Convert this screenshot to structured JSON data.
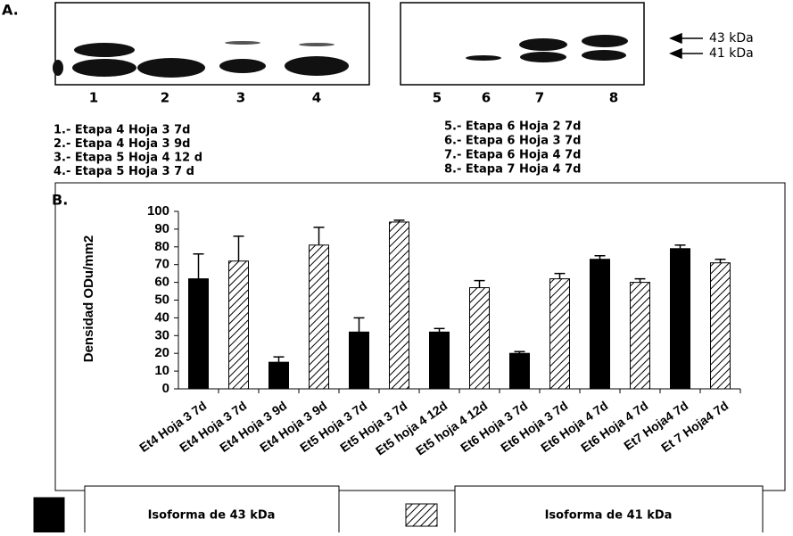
{
  "panel_a": {
    "label": "A.",
    "lanes": [
      "1",
      "2",
      "3",
      "4",
      "5",
      "6",
      "7",
      "8"
    ],
    "markers": [
      "43 kDa",
      "41 kDa"
    ],
    "legend_left": [
      "1.- Etapa 4 Hoja 3 7d",
      "2.- Etapa 4 Hoja 3 9d",
      "3.- Etapa 5 Hoja 4 12 d",
      "4.- Etapa 5 Hoja 3  7  d"
    ],
    "legend_right": [
      "5.- Etapa 6 Hoja 2  7d",
      "6.- Etapa 6 Hoja 3  7d",
      "7.- Etapa 6 Hoja 4  7d",
      "8.- Etapa 7 Hoja 4  7d"
    ]
  },
  "chart_data": {
    "type": "bar",
    "panel_label": "B.",
    "y_label": "Densidad ODu/mm2",
    "categories": [
      "Et4 Hoja 3 7d",
      "Et4 Hoja 3 7d",
      "Et4 Hoja 3 9d",
      "Et4 Hoja 3 9d",
      "Et5 Hoja 3 7d",
      "Et5 Hoja 3 7d",
      "Et5 hoja 4 12d",
      "Et5 hoja 4 12d",
      "Et6 Hoja 3 7d",
      "Et6 Hoja 3 7d",
      "Et6 Hoja 4 7d",
      "Et6 Hoja 4 7d",
      "Et7 Hoja4 7d",
      "Et 7 Hoja4 7d"
    ],
    "series": [
      {
        "name": "Isoforma de 43 kDa",
        "color": "#000000",
        "hatch": false,
        "values": [
          62,
          null,
          15,
          null,
          32,
          null,
          32,
          null,
          20,
          null,
          73,
          null,
          79,
          null
        ],
        "errors": [
          14,
          null,
          3,
          null,
          8,
          null,
          2,
          null,
          1,
          null,
          2,
          null,
          2,
          null
        ]
      },
      {
        "name": "Isoforma de 41 kDa",
        "color": "#000000",
        "hatch": true,
        "values": [
          null,
          72,
          null,
          81,
          null,
          94,
          null,
          57,
          null,
          62,
          null,
          60,
          null,
          71
        ],
        "errors": [
          null,
          14,
          null,
          10,
          null,
          1,
          null,
          4,
          null,
          3,
          null,
          2,
          null,
          2
        ]
      }
    ],
    "ylim": [
      0,
      100
    ],
    "yticks": [
      0,
      10,
      20,
      30,
      40,
      50,
      60,
      70,
      80,
      90,
      100
    ]
  }
}
